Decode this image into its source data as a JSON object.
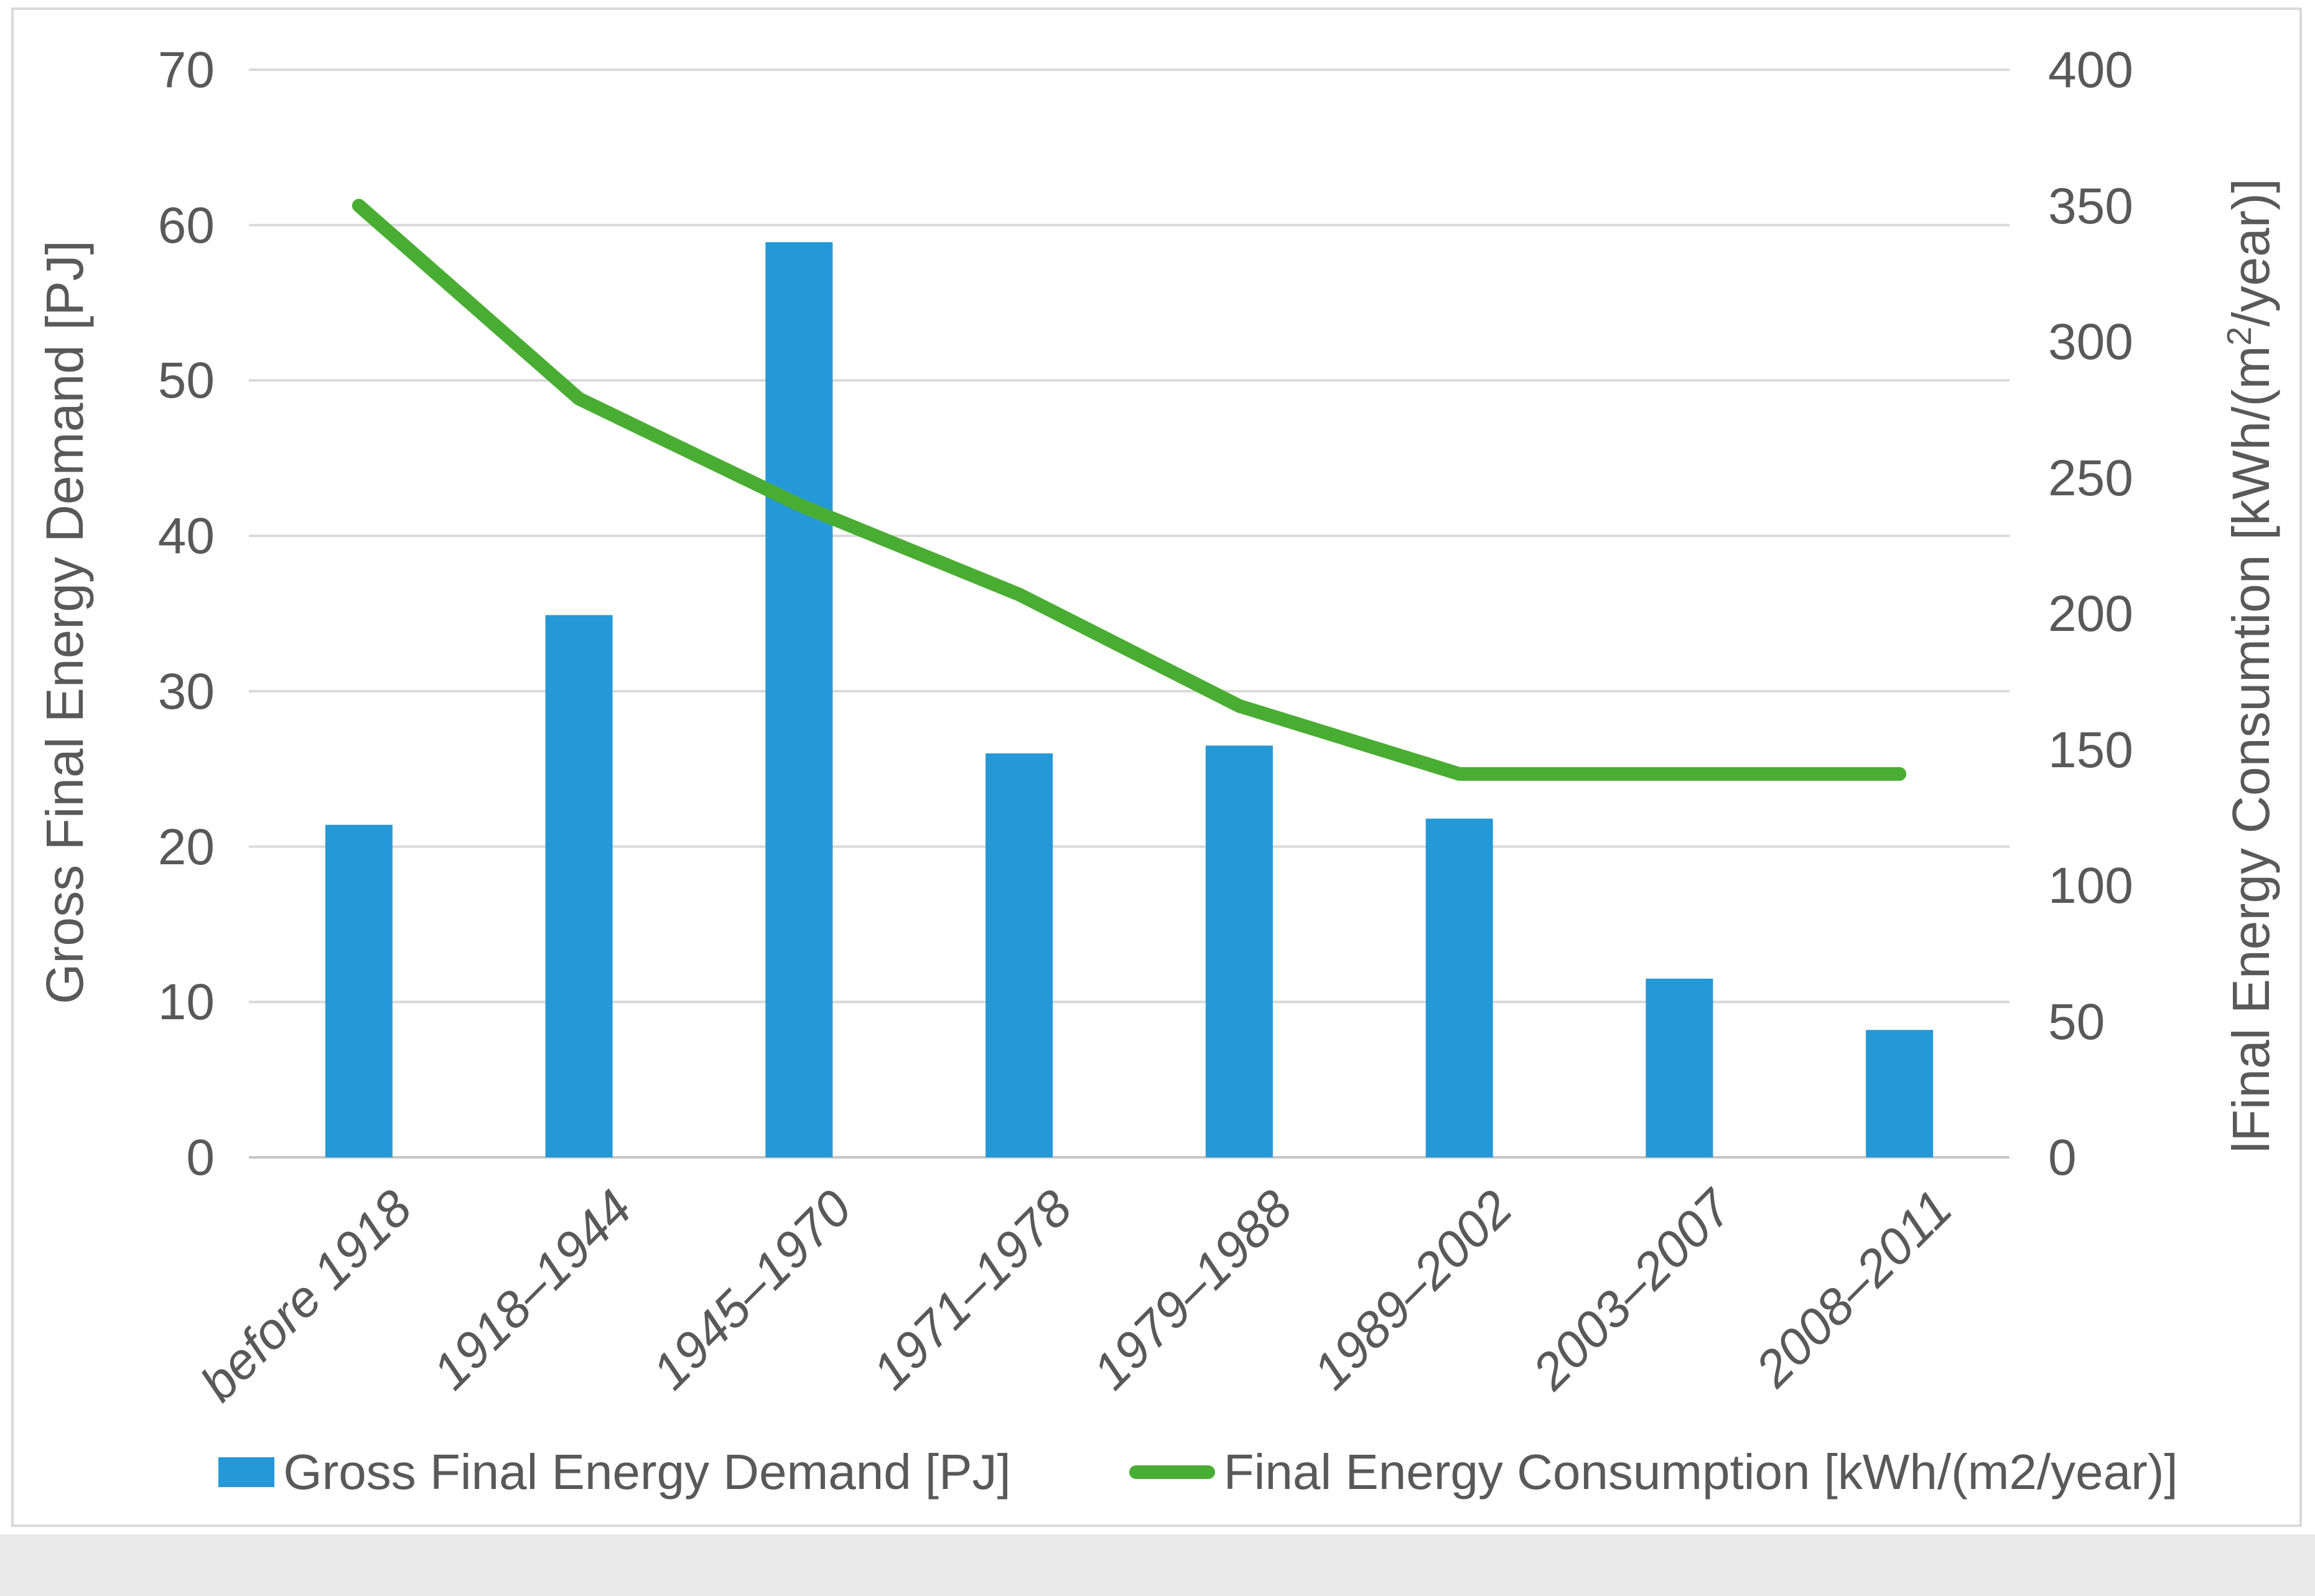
{
  "figure": {
    "left_axis_title": "Gross Final Energy Demand [PJ]",
    "right_axis_title_prefix": "lFinal Energy Consumtion [kWh/(m",
    "right_axis_title_sup": "2",
    "right_axis_title_suffix": "/year)]",
    "legend": {
      "bar_label": "Gross Final Energy Demand [PJ]",
      "line_label": "Final Energy Consumption [kWh/(m2/year)]"
    }
  },
  "chart_data": {
    "type": "bar",
    "subtype": "bar+line-dual-axis",
    "categories": [
      "before 1918",
      "1918–1944",
      "1945–1970",
      "1971–1978",
      "1979–1988",
      "1989–2002",
      "2003–2007",
      "2008–2011"
    ],
    "series": [
      {
        "name": "Gross Final Energy Demand [PJ]",
        "type": "bar",
        "axis": "left",
        "color": "#2598D8",
        "values": [
          21.4,
          34.9,
          58.9,
          26.0,
          26.5,
          21.8,
          11.5,
          8.2
        ]
      },
      {
        "name": "Final Energy Consumption [kWh/(m2/year)]",
        "type": "line",
        "axis": "right",
        "color": "#4AAD33",
        "values": [
          350,
          279,
          240,
          207,
          166,
          141,
          141,
          141
        ]
      }
    ],
    "left_axis": {
      "label": "Gross Final Energy Demand [PJ]",
      "range": [
        0,
        70
      ],
      "tick_step": 10,
      "tick_labels": [
        "70",
        "60",
        "50",
        "40",
        "30",
        "20",
        "10",
        "0"
      ]
    },
    "right_axis": {
      "label": "lFinal Energy Consumtion [kWh/(m2/year)]",
      "range": [
        0,
        400
      ],
      "tick_step": 50,
      "tick_labels": [
        "400",
        "350",
        "300",
        "250",
        "200",
        "150",
        "100",
        "50",
        "0"
      ]
    },
    "grid": true,
    "grid_color": "#D9D9D9",
    "legend_position": "bottom",
    "xlabel": "",
    "ylabel": "Gross Final Energy Demand [PJ]",
    "title": ""
  }
}
